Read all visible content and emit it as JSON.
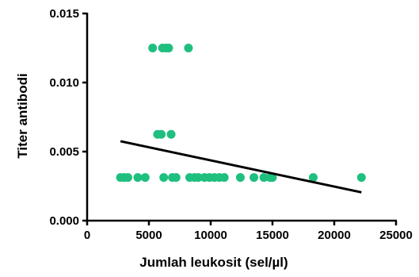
{
  "chart_data": {
    "type": "scatter",
    "xlabel": "Jumlah leukosit (sel/µl)",
    "ylabel": "Titer antibodi",
    "xlim": [
      0,
      25000
    ],
    "ylim": [
      0,
      0.015
    ],
    "x_ticks": [
      "0",
      "5000",
      "10000",
      "15000",
      "20000",
      "25000"
    ],
    "y_ticks": [
      "0.000",
      "0.005",
      "0.010",
      "0.015"
    ],
    "x_tick_values": [
      0,
      5000,
      10000,
      15000,
      20000,
      25000
    ],
    "y_tick_values": [
      0,
      0.005,
      0.01,
      0.015
    ],
    "grid": false,
    "point_color": "#1fbf7f",
    "line_color": "#000000",
    "points": [
      {
        "x": 2700,
        "y": 0.003125
      },
      {
        "x": 3000,
        "y": 0.003125
      },
      {
        "x": 3300,
        "y": 0.003125
      },
      {
        "x": 4100,
        "y": 0.003125
      },
      {
        "x": 4700,
        "y": 0.003125
      },
      {
        "x": 5300,
        "y": 0.0125
      },
      {
        "x": 5700,
        "y": 0.00625
      },
      {
        "x": 6000,
        "y": 0.00625
      },
      {
        "x": 6100,
        "y": 0.0125
      },
      {
        "x": 6200,
        "y": 0.003125
      },
      {
        "x": 6400,
        "y": 0.0125
      },
      {
        "x": 6600,
        "y": 0.0125
      },
      {
        "x": 6800,
        "y": 0.00625
      },
      {
        "x": 6900,
        "y": 0.003125
      },
      {
        "x": 7200,
        "y": 0.003125
      },
      {
        "x": 8200,
        "y": 0.0125
      },
      {
        "x": 8300,
        "y": 0.003125
      },
      {
        "x": 8700,
        "y": 0.003125
      },
      {
        "x": 9000,
        "y": 0.003125
      },
      {
        "x": 9500,
        "y": 0.003125
      },
      {
        "x": 9900,
        "y": 0.003125
      },
      {
        "x": 10300,
        "y": 0.003125
      },
      {
        "x": 10700,
        "y": 0.003125
      },
      {
        "x": 11100,
        "y": 0.003125
      },
      {
        "x": 12400,
        "y": 0.003125
      },
      {
        "x": 13500,
        "y": 0.003125
      },
      {
        "x": 14300,
        "y": 0.003125
      },
      {
        "x": 14800,
        "y": 0.003125
      },
      {
        "x": 15000,
        "y": 0.003125
      },
      {
        "x": 18300,
        "y": 0.003125
      },
      {
        "x": 22200,
        "y": 0.003125
      }
    ],
    "regression": {
      "x": [
        2700,
        22200
      ],
      "y": [
        0.00575,
        0.00205
      ]
    }
  }
}
